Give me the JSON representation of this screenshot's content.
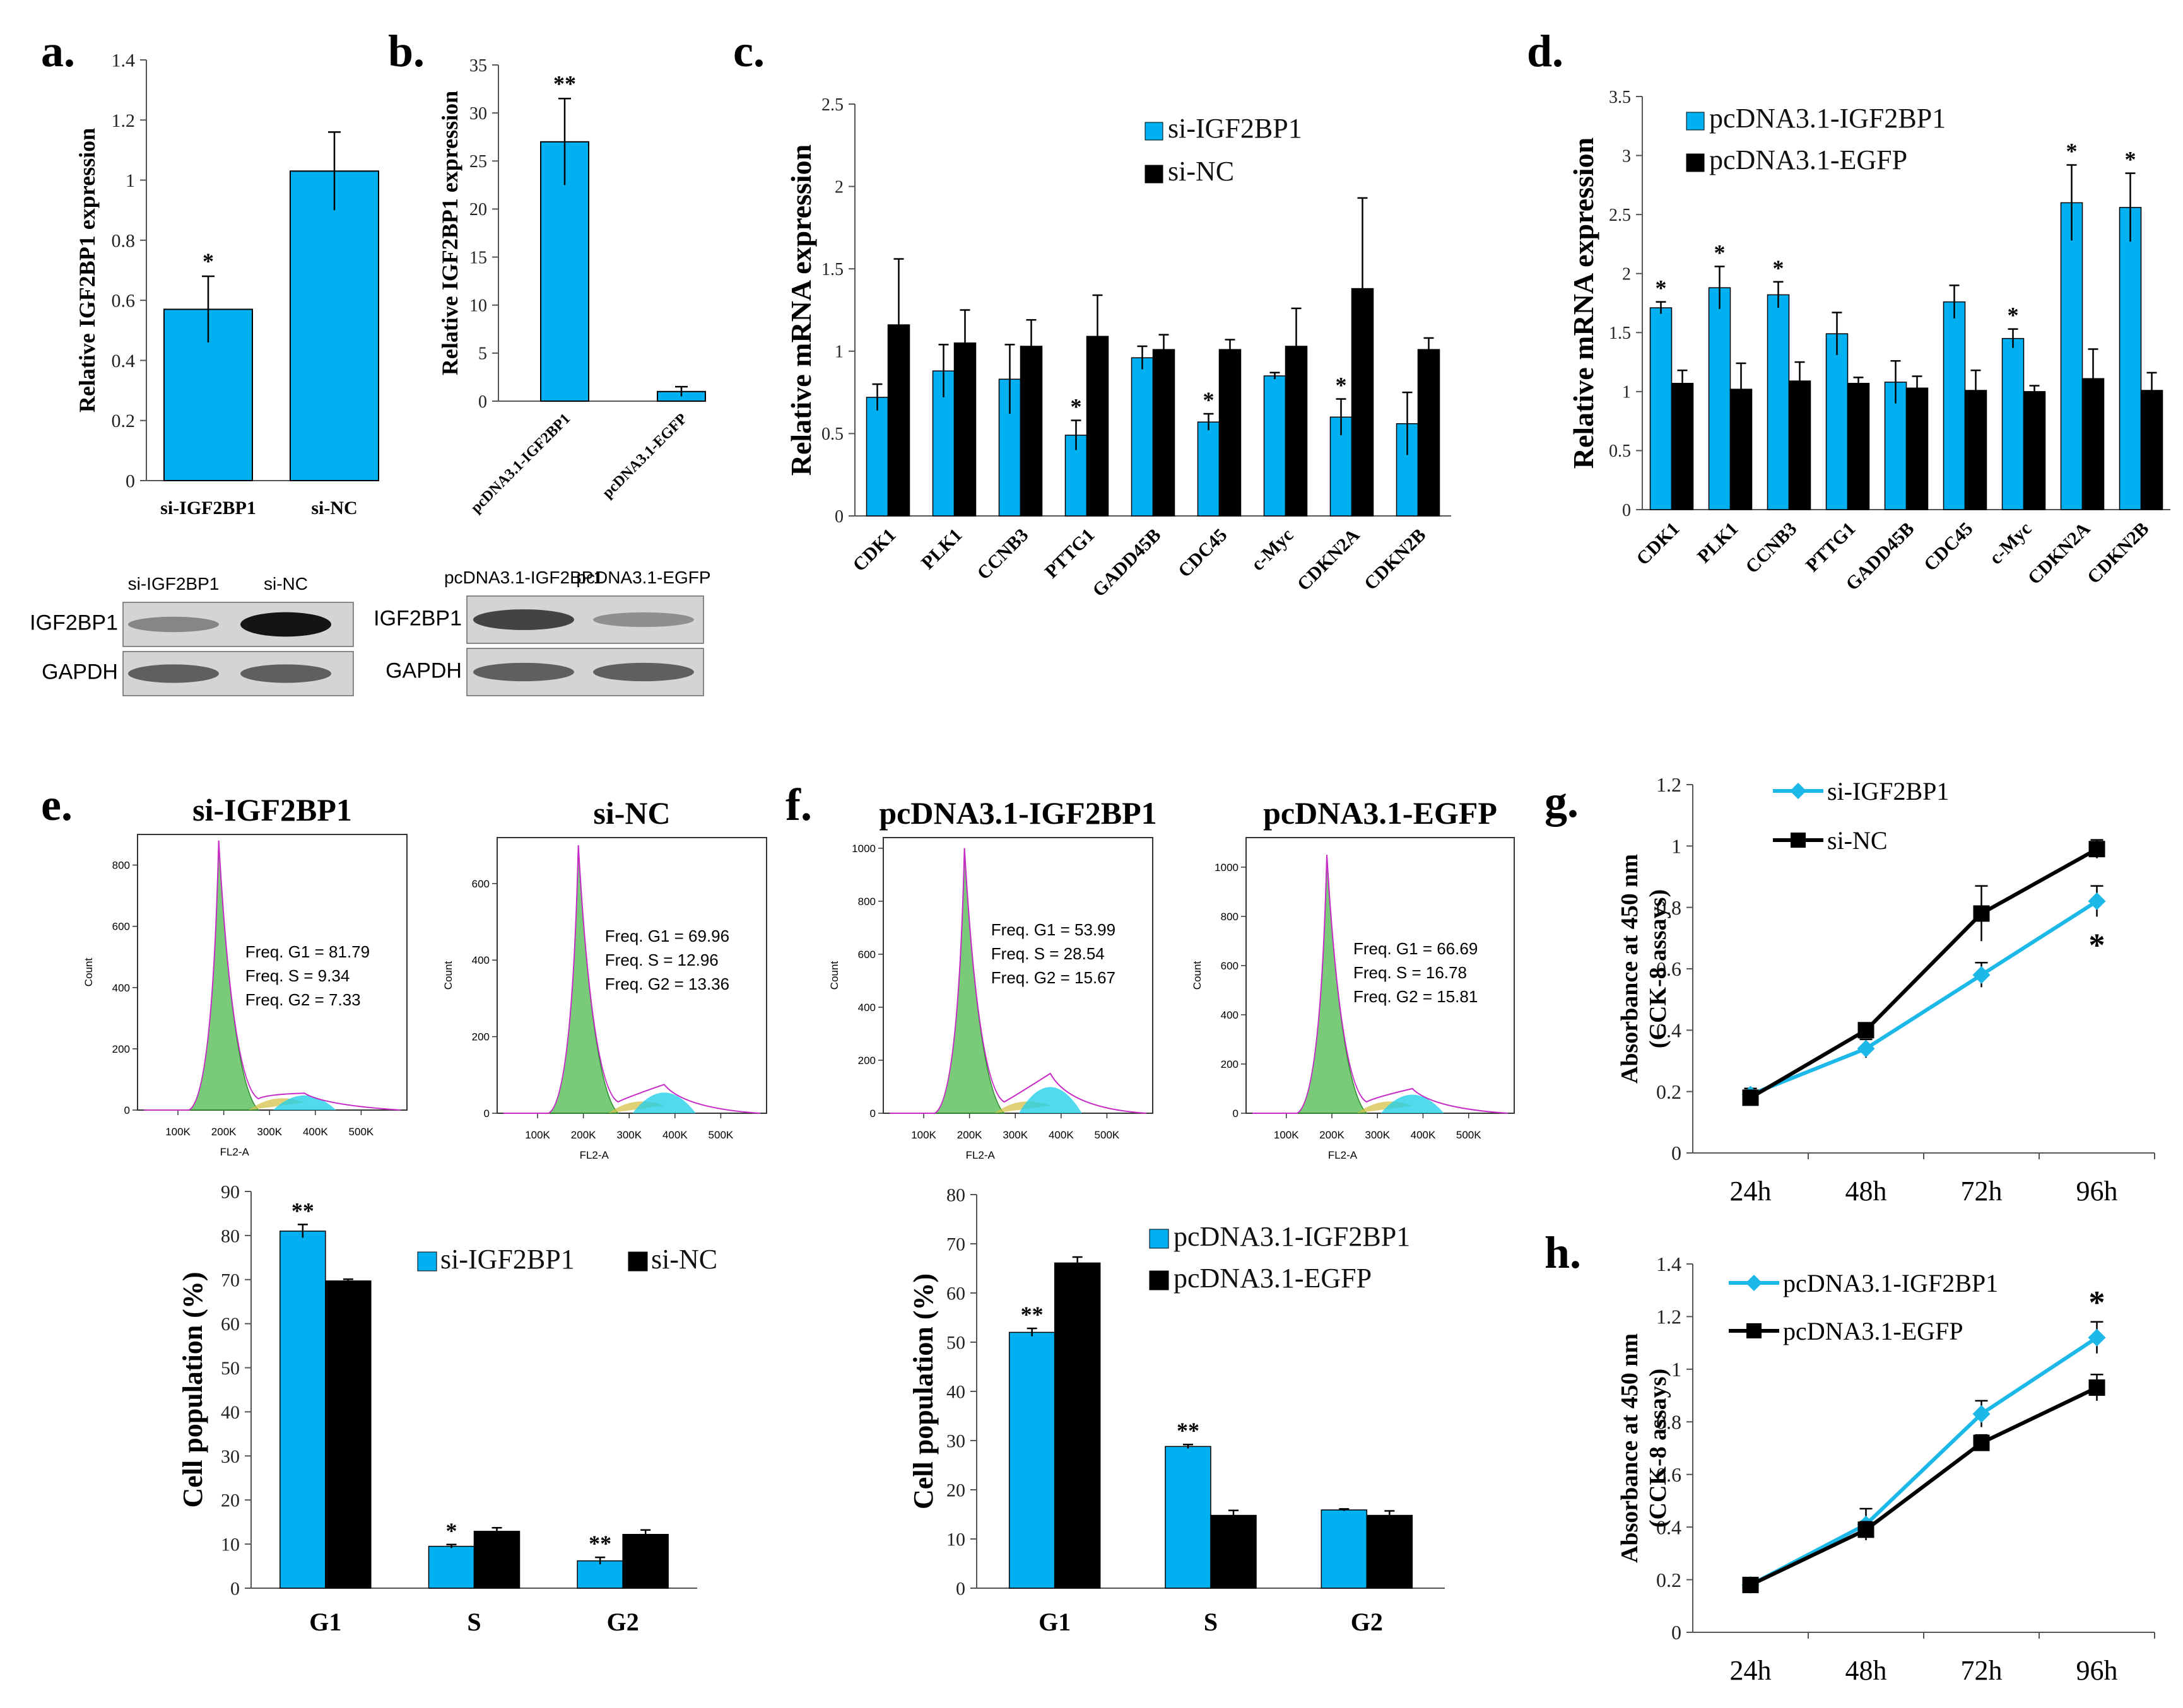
{
  "colors": {
    "blue": "#00B0F0",
    "black": "#000000",
    "cyan_line": "#1CB8E8"
  },
  "panel_labels": {
    "a": "a.",
    "b": "b.",
    "c": "c.",
    "d": "d.",
    "e": "e.",
    "f": "f.",
    "g": "g.",
    "h": "h."
  },
  "chart_data": [
    {
      "id": "a",
      "type": "bar",
      "ylabel": "Relative IGF2BP1 expression",
      "categories": [
        "si-IGF2BP1",
        "si-NC"
      ],
      "values": [
        0.57,
        1.03
      ],
      "errors": [
        0.11,
        0.13
      ],
      "annotations": [
        "*",
        ""
      ],
      "ylim": [
        0,
        1.4
      ],
      "yticks": [
        "0",
        "0.2",
        "0.4",
        "0.6",
        "0.8",
        "1",
        "1.2",
        "1.4"
      ]
    },
    {
      "id": "b",
      "type": "bar",
      "ylabel": "Relative IGF2BP1 expression",
      "categories": [
        "pcDNA3.1-IGF2BP1",
        "pcDNA3.1-EGFP"
      ],
      "values": [
        27,
        1.0
      ],
      "errors": [
        4.5,
        0.5
      ],
      "annotations": [
        "**",
        ""
      ],
      "ylim": [
        0,
        35
      ],
      "yticks": [
        "0",
        "5",
        "10",
        "15",
        "20",
        "25",
        "30",
        "35"
      ]
    },
    {
      "id": "c",
      "type": "bar",
      "ylabel": "Relative mRNA expression",
      "categories": [
        "CDK1",
        "PLK1",
        "CCNB3",
        "PTTG1",
        "GADD45B",
        "CDC45",
        "c-Myc",
        "CDKN2A",
        "CDKN2B"
      ],
      "series": [
        {
          "name": "si-IGF2BP1",
          "values": [
            0.72,
            0.88,
            0.83,
            0.49,
            0.96,
            0.57,
            0.85,
            0.6,
            0.56
          ],
          "errors": [
            0.08,
            0.16,
            0.21,
            0.09,
            0.07,
            0.05,
            0.02,
            0.11,
            0.19
          ],
          "annotations": [
            "",
            "",
            "",
            "*",
            "",
            "*",
            "",
            "*",
            ""
          ]
        },
        {
          "name": "si-NC",
          "values": [
            1.16,
            1.05,
            1.03,
            1.09,
            1.01,
            1.01,
            1.03,
            1.38,
            1.01
          ],
          "errors": [
            0.4,
            0.2,
            0.16,
            0.25,
            0.09,
            0.06,
            0.23,
            0.55,
            0.07
          ],
          "annotations": [
            "",
            "",
            "",
            "",
            "",
            "",
            "",
            "",
            ""
          ]
        }
      ],
      "ylim": [
        0,
        2.5
      ],
      "yticks": [
        "0",
        "0.5",
        "1",
        "1.5",
        "2",
        "2.5"
      ],
      "legend": "top-right"
    },
    {
      "id": "d",
      "type": "bar",
      "ylabel": "Relative mRNA expression",
      "categories": [
        "CDK1",
        "PLK1",
        "CCNB3",
        "PTTG1",
        "GADD45B",
        "CDC45",
        "c-Myc",
        "CDKN2A",
        "CDKN2B"
      ],
      "series": [
        {
          "name": "pcDNA3.1-IGF2BP1",
          "values": [
            1.71,
            1.88,
            1.82,
            1.49,
            1.08,
            1.76,
            1.45,
            2.6,
            2.56
          ],
          "errors": [
            0.05,
            0.18,
            0.11,
            0.18,
            0.18,
            0.14,
            0.08,
            0.32,
            0.29
          ],
          "annotations": [
            "*",
            "*",
            "*",
            "",
            "",
            "",
            "*",
            "*",
            "*"
          ]
        },
        {
          "name": "pcDNA3.1-EGFP",
          "values": [
            1.07,
            1.02,
            1.09,
            1.07,
            1.03,
            1.01,
            1.0,
            1.11,
            1.01
          ],
          "errors": [
            0.11,
            0.22,
            0.16,
            0.05,
            0.1,
            0.17,
            0.05,
            0.25,
            0.15
          ],
          "annotations": [
            "",
            "",
            "",
            "",
            "",
            "",
            "",
            "",
            ""
          ]
        }
      ],
      "ylim": [
        0,
        3.5
      ],
      "yticks": [
        "0",
        "0.5",
        "1",
        "1.5",
        "2",
        "2.5",
        "3",
        "3.5"
      ],
      "legend": "top-left"
    },
    {
      "id": "e-hist",
      "type": "histogram",
      "titles": [
        "si-IGF2BP1",
        "si-NC"
      ],
      "xlabel": "FL2-A",
      "ylabel": "Count",
      "xticks": [
        "100K",
        "200K",
        "300K",
        "400K",
        "500K"
      ],
      "plots": [
        {
          "yticks": [
            "0",
            "200",
            "400",
            "600",
            "800"
          ],
          "ymax": 900,
          "peak": 880,
          "peak2": 55,
          "freq": [
            "Freq. G1 = 81.79",
            "Freq. S = 9.34",
            "Freq. G2 = 7.33"
          ]
        },
        {
          "yticks": [
            "0",
            "200",
            "400",
            "600"
          ],
          "ymax": 720,
          "peak": 700,
          "peak2": 75,
          "freq": [
            "Freq. G1 = 69.96",
            "Freq. S = 12.96",
            "Freq. G2 = 13.36"
          ]
        }
      ]
    },
    {
      "id": "f-hist",
      "type": "histogram",
      "titles": [
        "pcDNA3.1-IGF2BP1",
        "pcDNA3.1-EGFP"
      ],
      "xlabel": "FL2-A",
      "ylabel": "Count",
      "xticks": [
        "100K",
        "200K",
        "300K",
        "400K",
        "500K"
      ],
      "plots": [
        {
          "yticks": [
            "0",
            "200",
            "400",
            "600",
            "800",
            "1000"
          ],
          "ymax": 1040,
          "peak": 1000,
          "peak2": 150,
          "freq": [
            "Freq. G1 = 53.99",
            "Freq. S = 28.54",
            "Freq. G2 = 15.67"
          ]
        },
        {
          "yticks": [
            "0",
            "200",
            "400",
            "600",
            "800",
            "1000"
          ],
          "ymax": 1120,
          "peak": 1050,
          "peak2": 100,
          "freq": [
            "Freq. G1 = 66.69",
            "Freq. S = 16.78",
            "Freq. G2 = 15.81"
          ]
        }
      ]
    },
    {
      "id": "e-bar",
      "type": "bar",
      "ylabel": "Cell population (%)",
      "categories": [
        "G1",
        "S",
        "G2"
      ],
      "series": [
        {
          "name": "si-IGF2BP1",
          "values": [
            81.0,
            9.5,
            6.2
          ],
          "errors": [
            1.5,
            0.4,
            0.8
          ],
          "annotations": [
            "**",
            "*",
            "**"
          ]
        },
        {
          "name": "si-NC",
          "values": [
            69.7,
            12.9,
            12.2
          ],
          "errors": [
            0.4,
            0.8,
            1.0
          ],
          "annotations": [
            "",
            "",
            ""
          ]
        }
      ],
      "ylim": [
        0,
        90
      ],
      "yticks": [
        "0",
        "10",
        "20",
        "30",
        "40",
        "50",
        "60",
        "70",
        "80",
        "90"
      ],
      "legend": "top-right"
    },
    {
      "id": "f-bar",
      "type": "bar",
      "ylabel": "Cell population (%)",
      "categories": [
        "G1",
        "S",
        "G2"
      ],
      "series": [
        {
          "name": "pcDNA3.1-IGF2BP1",
          "values": [
            52.0,
            28.8,
            15.9
          ],
          "errors": [
            0.8,
            0.4,
            0.2
          ],
          "annotations": [
            "**",
            "**",
            ""
          ]
        },
        {
          "name": "pcDNA3.1-EGFP",
          "values": [
            66.1,
            14.8,
            14.8
          ],
          "errors": [
            1.2,
            1.0,
            0.9
          ],
          "annotations": [
            "",
            "",
            ""
          ]
        }
      ],
      "ylim": [
        0,
        80
      ],
      "yticks": [
        "0",
        "10",
        "20",
        "30",
        "40",
        "50",
        "60",
        "70",
        "80"
      ],
      "legend": "top-right"
    },
    {
      "id": "g",
      "type": "line",
      "ylabel": "Absorbance at 450 nm",
      "ylabel2": "(CCK-8 assays)",
      "x": [
        "24h",
        "48h",
        "72h",
        "96h"
      ],
      "series": [
        {
          "name": "si-IGF2BP1",
          "values": [
            0.19,
            0.34,
            0.58,
            0.82
          ],
          "errors": [
            0.02,
            0.03,
            0.04,
            0.05
          ],
          "marker": "diamond"
        },
        {
          "name": "si-NC",
          "values": [
            0.18,
            0.4,
            0.78,
            0.99
          ],
          "errors": [
            0.02,
            0.02,
            0.09,
            0.03
          ],
          "marker": "square"
        }
      ],
      "annotations": [
        "",
        "",
        "",
        "*"
      ],
      "ylim": [
        0,
        1.2
      ],
      "yticks": [
        "0",
        "0.2",
        "0.4",
        "0.6",
        "0.8",
        "1",
        "1.2"
      ],
      "legend": "top-left"
    },
    {
      "id": "h",
      "type": "line",
      "ylabel": "Absorbance at 450 nm",
      "ylabel2": "(CCK-8 assays)",
      "x": [
        "24h",
        "48h",
        "72h",
        "96h"
      ],
      "series": [
        {
          "name": "pcDNA3.1-IGF2BP1",
          "values": [
            0.18,
            0.41,
            0.83,
            1.12
          ],
          "errors": [
            0.02,
            0.06,
            0.05,
            0.06
          ],
          "marker": "diamond"
        },
        {
          "name": "pcDNA3.1-EGFP",
          "values": [
            0.18,
            0.39,
            0.72,
            0.93
          ],
          "errors": [
            0.02,
            0.03,
            0.03,
            0.05
          ],
          "marker": "square"
        }
      ],
      "annotations": [
        "",
        "",
        "",
        "*"
      ],
      "ylim": [
        0,
        1.4
      ],
      "yticks": [
        "0",
        "0.2",
        "0.4",
        "0.6",
        "0.8",
        "1",
        "1.2",
        "1.4"
      ],
      "legend": "top-left"
    }
  ],
  "western_blots": [
    {
      "id": "wb-a",
      "lanes": [
        "si-IGF2BP1",
        "si-NC"
      ],
      "rows": [
        "IGF2BP1",
        "GAPDH"
      ],
      "igf_intensity": [
        0.35,
        0.95
      ]
    },
    {
      "id": "wb-b",
      "lanes": [
        "pcDNA3.1-IGF2BP1",
        "pcDNA3.1-EGFP"
      ],
      "rows": [
        "IGF2BP1",
        "GAPDH"
      ],
      "igf_intensity": [
        0.7,
        0.3
      ]
    }
  ]
}
